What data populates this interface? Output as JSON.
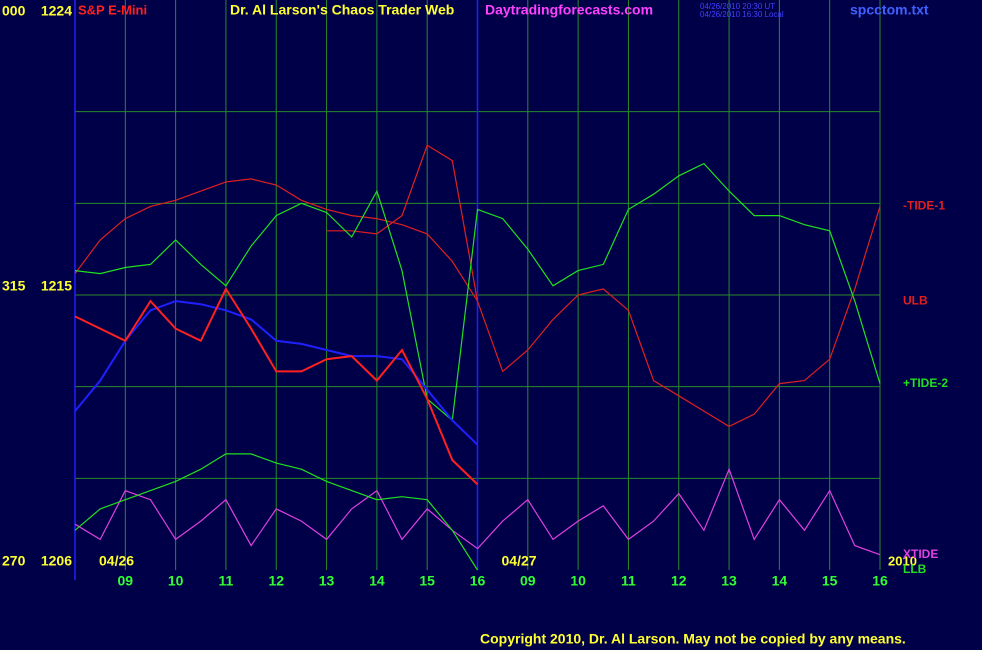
{
  "header": {
    "symbol": "S&P E-Mini",
    "site_title": "Dr. Al Larson's Chaos Trader Web",
    "site_url": "Daytradingforecasts.com",
    "time_ut": "04/26/2010 20:30 UT",
    "time_local": "04/26/2010 16:30 Local",
    "file": "spcctom.txt"
  },
  "footer": {
    "copyright": "Copyright 2010, Dr. Al Larson. May not be copied by any means.",
    "year": "2010"
  },
  "chart_data": {
    "type": "line",
    "dates": [
      "04/26",
      "04/27"
    ],
    "x": [
      0,
      0.5,
      1,
      1.5,
      2,
      2.5,
      3,
      3.5,
      4,
      4.5,
      5,
      5.5,
      6,
      6.5,
      7,
      7.5,
      8,
      8.5,
      9,
      9.5,
      10,
      10.5,
      11,
      11.5,
      12,
      12.5,
      13,
      13.5,
      14,
      14.5,
      15,
      15.5,
      16
    ],
    "xlim": [
      0,
      16
    ],
    "xticks": [
      {
        "value": 1,
        "label": "09"
      },
      {
        "value": 2,
        "label": "10"
      },
      {
        "value": 3,
        "label": "11"
      },
      {
        "value": 4,
        "label": "12"
      },
      {
        "value": 5,
        "label": "13"
      },
      {
        "value": 6,
        "label": "14"
      },
      {
        "value": 7,
        "label": "15"
      },
      {
        "value": 8,
        "label": "16"
      },
      {
        "value": 9,
        "label": "09"
      },
      {
        "value": 10,
        "label": "10"
      },
      {
        "value": 11,
        "label": "11"
      },
      {
        "value": 12,
        "label": "12"
      },
      {
        "value": 13,
        "label": "13"
      },
      {
        "value": 14,
        "label": "14"
      },
      {
        "value": 15,
        "label": "15"
      },
      {
        "value": 16,
        "label": "16"
      }
    ],
    "ylim": [
      1206,
      1224
    ],
    "yticks": [
      {
        "value": 1206,
        "label": "1206"
      },
      {
        "value": 1215,
        "label": "1215"
      },
      {
        "value": 1224,
        "label": "1224"
      }
    ],
    "angle_labels": [
      "270",
      "315",
      "000"
    ],
    "ygrid": [
      1209,
      1212,
      1215,
      1218,
      1221
    ],
    "grid": true,
    "series": [
      {
        "name": "-TIDE-1",
        "color": "#e02020",
        "values": [
          1215.7,
          1216.8,
          1217.5,
          1217.9,
          1218.1,
          1218.4,
          1218.7,
          1218.8,
          1218.6,
          1218.1,
          1217.8,
          1217.6,
          1217.5,
          1217.3,
          1217.0,
          1216.1,
          1214.8,
          1212.5,
          1213.2,
          1214.2,
          1215.0,
          1215.2,
          1214.5,
          1212.2,
          1211.7,
          1211.2,
          1210.7,
          1211.1,
          1212.1,
          1212.2,
          1212.9,
          1215.2,
          1217.9
        ]
      },
      {
        "name": "ULB",
        "color": "#e02020",
        "values": [
          null,
          null,
          null,
          null,
          null,
          null,
          null,
          null,
          null,
          null,
          1217.1,
          1217.1,
          1217.0,
          1217.6,
          1219.9,
          1219.4,
          1214.8,
          null,
          null,
          null,
          null,
          null,
          null,
          null,
          null,
          null,
          null,
          null,
          null,
          null,
          null,
          null,
          null
        ]
      },
      {
        "name": "+TIDE-2",
        "color": "#20e020",
        "values": [
          1215.8,
          1215.7,
          1215.9,
          1216.0,
          1216.8,
          1216.0,
          1215.3,
          1216.6,
          1217.6,
          1218.0,
          1217.7,
          1216.9,
          1218.4,
          1215.8,
          1211.6,
          1210.9,
          1217.8,
          1217.5,
          1216.5,
          1215.3,
          1215.8,
          1216.0,
          1217.8,
          1218.3,
          1218.9,
          1219.3,
          1218.4,
          1217.6,
          1217.6,
          1217.3,
          1217.1,
          1214.8,
          1212.1
        ]
      },
      {
        "name": "XTIDE",
        "color": "#e040e0",
        "values": [
          1207.5,
          1207.0,
          1208.6,
          1208.3,
          1207.0,
          1207.6,
          1208.3,
          1206.8,
          1208.0,
          1207.6,
          1207.0,
          1208.0,
          1208.6,
          1207.0,
          1208.0,
          1207.3,
          1206.7,
          1207.6,
          1208.3,
          1207.0,
          1207.6,
          1208.1,
          1207.0,
          1207.6,
          1208.5,
          1207.3,
          1209.3,
          1207.0,
          1208.3,
          1207.3,
          1208.6,
          1206.8,
          1206.5
        ]
      },
      {
        "name": "LLB",
        "color": "#20e020",
        "values": [
          1207.3,
          1208.0,
          1208.3,
          1208.6,
          1208.9,
          1209.3,
          1209.8,
          1209.8,
          1209.5,
          1209.3,
          1208.9,
          1208.6,
          1208.3,
          1208.4,
          1208.3,
          1207.3,
          1206.0,
          null,
          null,
          null,
          null,
          null,
          null,
          null,
          null,
          null,
          null,
          null,
          null,
          null,
          null,
          null,
          null
        ]
      },
      {
        "color": "#2020ff",
        "values": [
          1211.2,
          1212.2,
          1213.5,
          1214.5,
          1214.8,
          1214.7,
          1214.5,
          1214.2,
          1213.5,
          1213.4,
          1213.2,
          1213.0,
          1213.0,
          1212.9,
          1211.9,
          1210.9,
          1210.1,
          null,
          null,
          null,
          null,
          null,
          null,
          null,
          null,
          null,
          null,
          null,
          null,
          null,
          null,
          null,
          null
        ]
      },
      {
        "color": "#ff2020",
        "values": [
          1214.3,
          1213.9,
          1213.5,
          1214.8,
          1213.9,
          1213.5,
          1215.2,
          1213.9,
          1212.5,
          1212.5,
          1212.9,
          1213.0,
          1212.2,
          1213.2,
          1211.6,
          1209.6,
          1208.8,
          null,
          null,
          null,
          null,
          null,
          null,
          null,
          null,
          null,
          null,
          null,
          null,
          null,
          null,
          null,
          null
        ]
      }
    ]
  }
}
